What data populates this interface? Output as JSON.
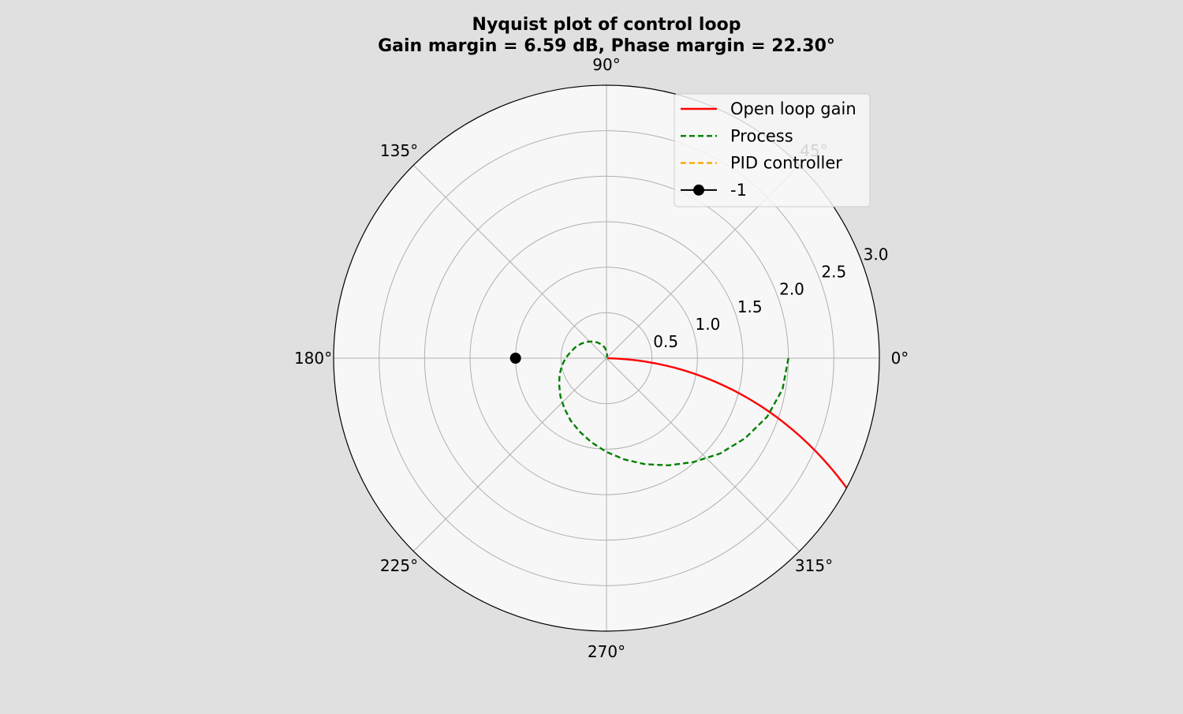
{
  "chart_data": {
    "type": "polar-line",
    "title_line1": "Nyquist plot of control loop",
    "title_line2": "Gain margin = 6.59 dB, Phase margin = 22.30°",
    "rlim": [
      0,
      3.0
    ],
    "r_ticks": [
      0.5,
      1.0,
      1.5,
      2.0,
      2.5,
      3.0
    ],
    "r_tick_labels": [
      "0.5",
      "1.0",
      "1.5",
      "2.0",
      "2.5",
      "3.0"
    ],
    "theta_ticks_deg": [
      0,
      45,
      90,
      135,
      180,
      225,
      270,
      315
    ],
    "theta_tick_labels": [
      "0°",
      "45°",
      "90°",
      "135°",
      "180°",
      "225°",
      "270°",
      "315°"
    ],
    "grid": true,
    "legend_position": "top-right",
    "series": [
      {
        "name": "Open loop gain",
        "color": "#ff0000",
        "style": "solid",
        "points": [
          [
            -30,
            3.18
          ],
          [
            -29,
            3.07
          ],
          [
            -28,
            2.96
          ],
          [
            -27,
            2.85
          ],
          [
            -26,
            2.74
          ],
          [
            -25,
            2.63
          ],
          [
            -24,
            2.52
          ],
          [
            -23,
            2.41
          ],
          [
            -22,
            2.3
          ],
          [
            -21,
            2.19
          ],
          [
            -20,
            2.08
          ],
          [
            -19,
            1.97
          ],
          [
            -18,
            1.86
          ],
          [
            -17,
            1.75
          ],
          [
            -16,
            1.64
          ],
          [
            -15,
            1.53
          ],
          [
            -14,
            1.42
          ],
          [
            -13,
            1.31
          ],
          [
            -12,
            1.2
          ],
          [
            -11,
            1.09
          ],
          [
            -10,
            0.98
          ],
          [
            -9,
            0.87
          ],
          [
            -8,
            0.76
          ],
          [
            -7,
            0.65
          ],
          [
            -6,
            0.54
          ],
          [
            -5,
            0.43
          ],
          [
            -4,
            0.32
          ],
          [
            -3,
            0.21
          ],
          [
            -2,
            0.1
          ],
          [
            -1.2,
            0.01
          ]
        ]
      },
      {
        "name": "Process",
        "color": "#008000",
        "style": "dashed",
        "points": [
          [
            0,
            2.0
          ],
          [
            -10,
            1.965
          ],
          [
            -20,
            1.88
          ],
          [
            -30,
            1.76
          ],
          [
            -40,
            1.63
          ],
          [
            -50,
            1.49
          ],
          [
            -60,
            1.36
          ],
          [
            -70,
            1.24
          ],
          [
            -80,
            1.13
          ],
          [
            -90,
            1.03
          ],
          [
            -100,
            0.94
          ],
          [
            -110,
            0.86
          ],
          [
            -120,
            0.79
          ],
          [
            -130,
            0.72
          ],
          [
            -140,
            0.66
          ],
          [
            -150,
            0.6
          ],
          [
            -160,
            0.55
          ],
          [
            -170,
            0.5
          ],
          [
            -180,
            0.45
          ],
          [
            -190,
            0.4
          ],
          [
            -200,
            0.36
          ],
          [
            -210,
            0.32
          ],
          [
            -220,
            0.28
          ],
          [
            -230,
            0.24
          ],
          [
            -240,
            0.2
          ],
          [
            -250,
            0.16
          ],
          [
            -260,
            0.12
          ],
          [
            -270,
            0.08
          ],
          [
            -280,
            0.04
          ],
          [
            -290,
            0.01
          ]
        ]
      },
      {
        "name": "PID controller",
        "color": "#ffa500",
        "style": "dashed",
        "points": []
      },
      {
        "name": "-1",
        "color": "#000000",
        "style": "marker",
        "points": [
          [
            180,
            1.0
          ]
        ]
      }
    ]
  }
}
